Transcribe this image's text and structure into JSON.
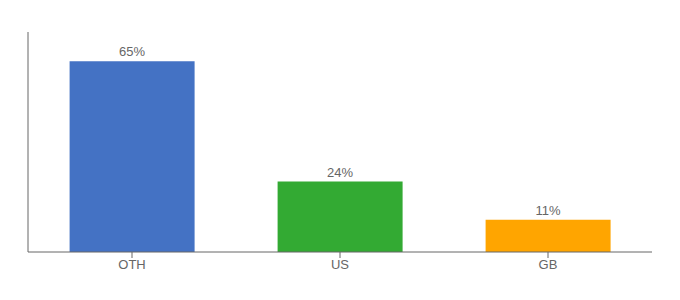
{
  "chart_data": {
    "type": "bar",
    "categories": [
      "OTH",
      "US",
      "GB"
    ],
    "values": [
      65,
      24,
      11
    ],
    "value_labels": [
      "65%",
      "24%",
      "11%"
    ],
    "colors": [
      "#4472C4",
      "#33AA33",
      "#FFA500"
    ],
    "ylim": [
      0,
      75
    ],
    "data_labels": true,
    "tick_labels": "x",
    "grid": false
  }
}
